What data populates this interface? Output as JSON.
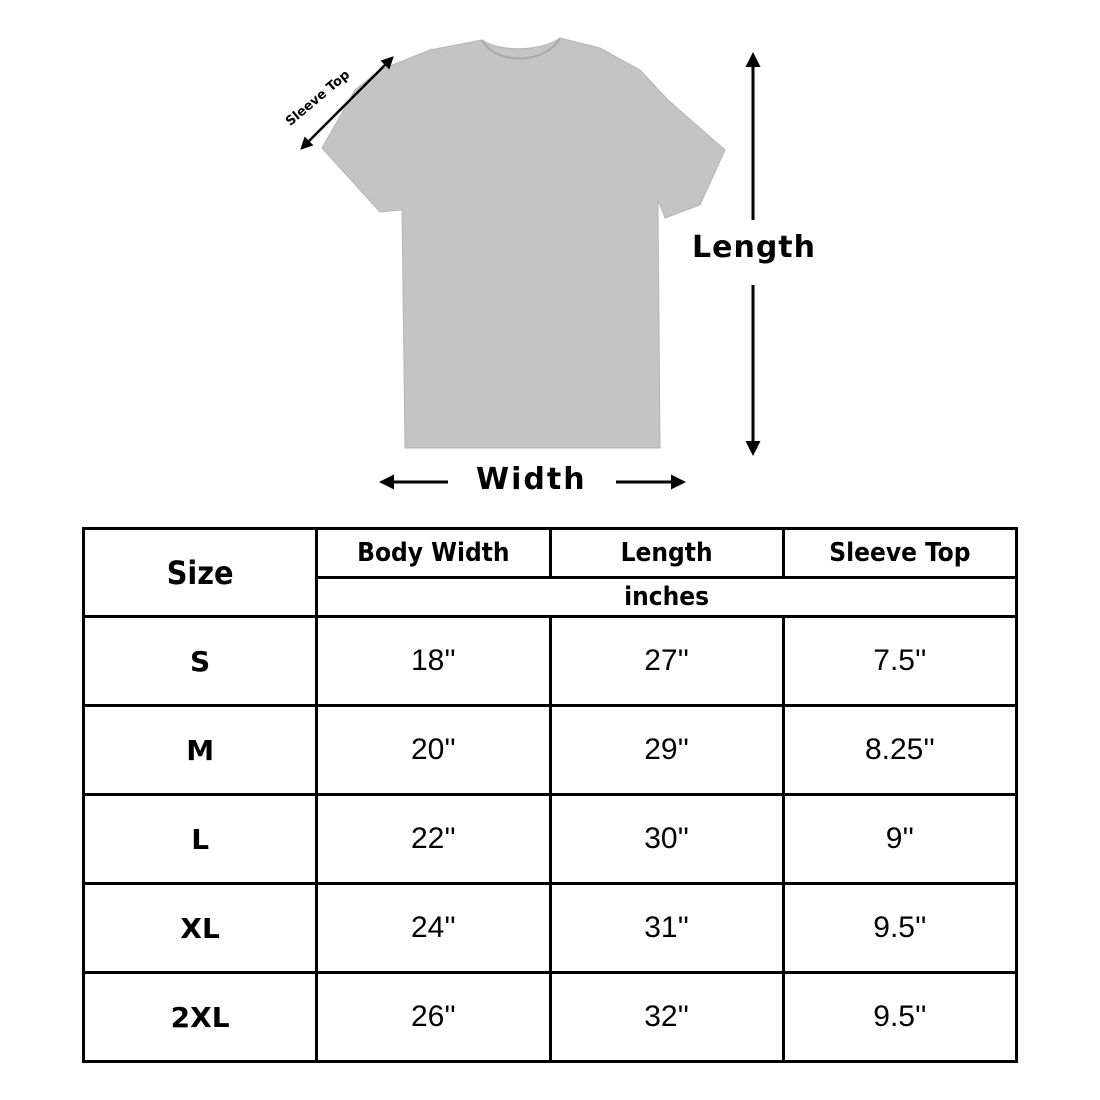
{
  "diagram": {
    "sleeve_label": "Sleeve Top",
    "length_label": "Length",
    "width_label": "Width",
    "shirt_color": "#c4c4c4"
  },
  "table": {
    "headers": {
      "size": "Size",
      "body_width": "Body Width",
      "length": "Length",
      "sleeve_top": "Sleeve Top",
      "unit": "inches"
    },
    "rows": [
      {
        "size": "S",
        "body_width": "18''",
        "length": "27''",
        "sleeve_top": "7.5''"
      },
      {
        "size": "M",
        "body_width": "20''",
        "length": "29''",
        "sleeve_top": "8.25''"
      },
      {
        "size": "L",
        "body_width": "22''",
        "length": "30''",
        "sleeve_top": "9''"
      },
      {
        "size": "XL",
        "body_width": "24''",
        "length": "31''",
        "sleeve_top": "9.5''"
      },
      {
        "size": "2XL",
        "body_width": "26''",
        "length": "32''",
        "sleeve_top": "9.5''"
      }
    ]
  }
}
